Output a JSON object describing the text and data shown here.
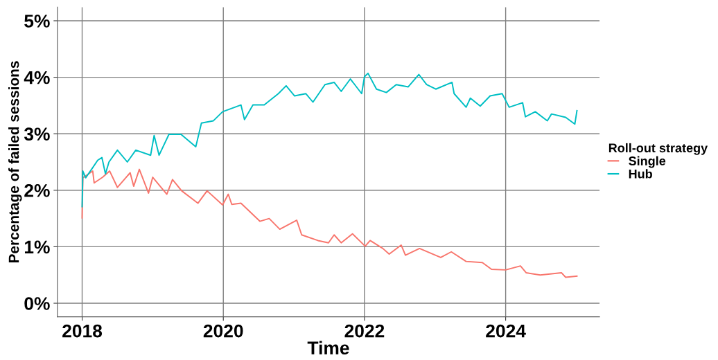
{
  "chart_data": {
    "type": "line",
    "xlabel": "Time",
    "ylabel": "Percentage of failed sessions",
    "legend_title": "Roll-out strategy",
    "legend": "right",
    "grid": true,
    "marker": "none",
    "line_style": "solid",
    "xlim": [
      2017.65,
      2025.33
    ],
    "xticks": [
      2018,
      2020,
      2022,
      2024
    ],
    "ylim": [
      -0.24,
      5.24
    ],
    "yticks": [
      {
        "value": 0,
        "label": "0%"
      },
      {
        "value": 1,
        "label": "1%"
      },
      {
        "value": 2,
        "label": "2%"
      },
      {
        "value": 3,
        "label": "3%"
      },
      {
        "value": 4,
        "label": "4%"
      },
      {
        "value": 5,
        "label": "5%"
      }
    ],
    "series": [
      {
        "name": "Single",
        "color": "#f8766d",
        "x": [
          2018.0,
          2018.01,
          2018.15,
          2018.17,
          2018.29,
          2018.39,
          2018.5,
          2018.68,
          2018.73,
          2018.81,
          2018.94,
          2019.0,
          2019.2,
          2019.28,
          2019.41,
          2019.64,
          2019.77,
          2019.99,
          2020.07,
          2020.12,
          2020.25,
          2020.52,
          2020.65,
          2020.8,
          2021.04,
          2021.11,
          2021.34,
          2021.49,
          2021.57,
          2021.67,
          2021.83,
          2022.01,
          2022.08,
          2022.26,
          2022.35,
          2022.52,
          2022.58,
          2022.78,
          2023.08,
          2023.23,
          2023.44,
          2023.67,
          2023.8,
          2024.0,
          2024.21,
          2024.29,
          2024.49,
          2024.79,
          2024.85,
          2025.01
        ],
        "values": [
          1.51,
          2.22,
          2.34,
          2.13,
          2.23,
          2.34,
          2.05,
          2.31,
          2.07,
          2.37,
          1.95,
          2.23,
          1.93,
          2.19,
          1.99,
          1.77,
          1.99,
          1.74,
          1.93,
          1.75,
          1.77,
          1.45,
          1.5,
          1.31,
          1.47,
          1.21,
          1.11,
          1.07,
          1.21,
          1.07,
          1.23,
          1.01,
          1.11,
          0.97,
          0.87,
          1.03,
          0.85,
          0.97,
          0.81,
          0.91,
          0.74,
          0.72,
          0.6,
          0.59,
          0.66,
          0.54,
          0.5,
          0.54,
          0.46,
          0.48
        ]
      },
      {
        "name": "Hub",
        "color": "#00bfc4",
        "x": [
          2018.0,
          2018.01,
          2018.05,
          2018.15,
          2018.22,
          2018.28,
          2018.33,
          2018.38,
          2018.5,
          2018.64,
          2018.76,
          2018.97,
          2019.02,
          2019.09,
          2019.23,
          2019.4,
          2019.61,
          2019.69,
          2019.86,
          2019.99,
          2020.25,
          2020.3,
          2020.42,
          2020.58,
          2020.78,
          2020.89,
          2021.01,
          2021.17,
          2021.27,
          2021.44,
          2021.57,
          2021.67,
          2021.8,
          2021.96,
          2022.0,
          2022.05,
          2022.17,
          2022.31,
          2022.45,
          2022.62,
          2022.77,
          2022.88,
          2023.01,
          2023.24,
          2023.27,
          2023.44,
          2023.5,
          2023.64,
          2023.78,
          2023.95,
          2024.05,
          2024.24,
          2024.28,
          2024.42,
          2024.59,
          2024.65,
          2024.85,
          2024.98,
          2025.01
        ],
        "values": [
          1.71,
          2.34,
          2.22,
          2.4,
          2.53,
          2.58,
          2.29,
          2.5,
          2.71,
          2.5,
          2.71,
          2.62,
          2.97,
          2.62,
          2.99,
          2.99,
          2.77,
          3.19,
          3.23,
          3.39,
          3.51,
          3.25,
          3.51,
          3.51,
          3.71,
          3.85,
          3.67,
          3.71,
          3.56,
          3.87,
          3.91,
          3.75,
          3.97,
          3.71,
          4.01,
          4.07,
          3.79,
          3.73,
          3.87,
          3.83,
          4.05,
          3.87,
          3.79,
          3.91,
          3.71,
          3.47,
          3.63,
          3.49,
          3.67,
          3.71,
          3.47,
          3.55,
          3.3,
          3.39,
          3.23,
          3.35,
          3.29,
          3.17,
          3.41
        ]
      }
    ]
  }
}
